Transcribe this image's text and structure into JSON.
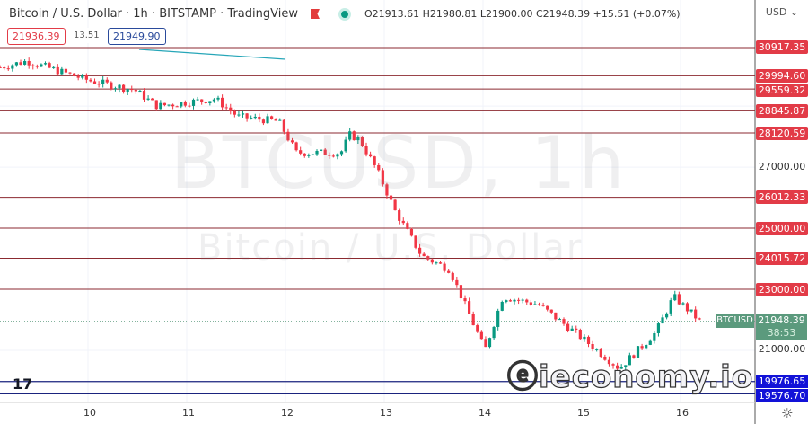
{
  "header": {
    "title": "Bitcoin / U.S. Dollar · 1h · BITSTAMP · TradingView",
    "ohlc": "O21913.61 H21980.81 L21900.00 C21948.39 +15.51 (+0.07%)",
    "bid": "21936.39",
    "spread": "13.51",
    "ask": "21949.90"
  },
  "axis": {
    "currency": "USD ⌄",
    "ticks": [
      "27000.00",
      "21000.00"
    ],
    "time_labels": [
      "10",
      "11",
      "12",
      "13",
      "14",
      "15",
      "16"
    ]
  },
  "levels": [
    {
      "label": "30917.35",
      "price": 30917.35
    },
    {
      "label": "29994.60",
      "price": 29994.6
    },
    {
      "label": "29559.32",
      "price": 29559.32
    },
    {
      "label": "28845.87",
      "price": 28845.87
    },
    {
      "label": "28120.59",
      "price": 28120.59
    },
    {
      "label": "26012.33",
      "price": 26012.33
    },
    {
      "label": "25000.00",
      "price": 25000
    },
    {
      "label": "24015.72",
      "price": 24015.72
    },
    {
      "label": "23000.00",
      "price": 23000
    }
  ],
  "support_levels": [
    {
      "label": "19976.65",
      "price": 19976.65
    },
    {
      "label": "19576.70",
      "price": 19576.7
    }
  ],
  "current": {
    "symbol": "BTCUSD",
    "price": "21948.39",
    "countdown": "38:53",
    "value": 21948.39
  },
  "watermark": {
    "symbol": "BTCUSD, 1h",
    "name": "Bitcoin / U.S. Dollar"
  },
  "logo": "ieconomy.io",
  "colors": {
    "up": "#089981",
    "down": "#f23645",
    "level": "#e23b47",
    "support": "#1a237e",
    "current": "#5b9a7d",
    "trend": "#26a6b8"
  },
  "chart_data": {
    "type": "candlestick",
    "x_unit": "day",
    "y_range": [
      19400,
      31900
    ],
    "path": [
      [
        9.11,
        30270
      ],
      [
        9.38,
        30475
      ],
      [
        10.02,
        29830
      ],
      [
        10.47,
        29530
      ],
      [
        10.7,
        29000
      ],
      [
        11.29,
        29240
      ],
      [
        11.52,
        28650
      ],
      [
        11.93,
        28500
      ],
      [
        12.11,
        27470
      ],
      [
        12.56,
        27470
      ],
      [
        12.65,
        28060
      ],
      [
        12.75,
        27900
      ],
      [
        12.93,
        26880
      ],
      [
        13.11,
        25560
      ],
      [
        13.38,
        24090
      ],
      [
        13.66,
        23650
      ],
      [
        14.02,
        21000
      ],
      [
        14.2,
        22760
      ],
      [
        14.56,
        22500
      ],
      [
        14.93,
        21590
      ],
      [
        15.38,
        20410
      ],
      [
        15.75,
        21590
      ],
      [
        15.93,
        22760
      ],
      [
        16.2,
        21948
      ]
    ]
  }
}
